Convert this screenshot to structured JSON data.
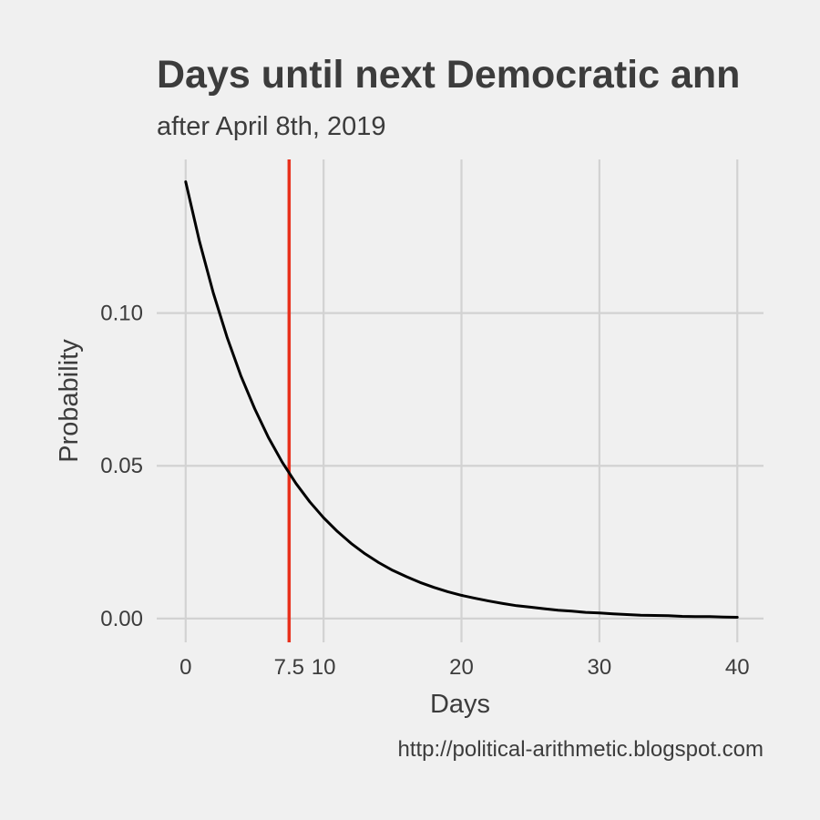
{
  "chart_data": {
    "type": "line",
    "title": "Days until next Democratic ann",
    "subtitle": "after April 8th, 2019",
    "xlabel": "Days",
    "ylabel": "Probability",
    "caption": "http://political-arithmetic.blogspot.com",
    "xlim": [
      -2.1,
      41.9
    ],
    "ylim": [
      -0.0078,
      0.1503
    ],
    "x_ticks": [
      0,
      7.5,
      10,
      20,
      30,
      40
    ],
    "x_tick_labels": [
      "0",
      "7.5",
      "10",
      "20",
      "30",
      "40"
    ],
    "y_ticks": [
      0,
      0.05,
      0.1
    ],
    "y_tick_labels": [
      "0.00",
      "0.05",
      "0.10"
    ],
    "grid": true,
    "series": [
      {
        "color": "#000000",
        "x": [
          0,
          1,
          2,
          3,
          4,
          5,
          6,
          7,
          8,
          9,
          10,
          11,
          12,
          13,
          14,
          15,
          16,
          17,
          18,
          19,
          20,
          21,
          22,
          23,
          24,
          25,
          26,
          27,
          28,
          29,
          30,
          31,
          32,
          33,
          34,
          35,
          36,
          37,
          38,
          39,
          40
        ],
        "values": [
          0.143,
          0.1235,
          0.1066,
          0.0921,
          0.0795,
          0.0687,
          0.0593,
          0.0512,
          0.0442,
          0.0382,
          0.033,
          0.0285,
          0.0246,
          0.0212,
          0.0183,
          0.0158,
          0.0137,
          0.0118,
          0.0102,
          0.0088,
          0.0076,
          0.0066,
          0.0057,
          0.0049,
          0.0042,
          0.0037,
          0.0032,
          0.0027,
          0.0024,
          0.002,
          0.0018,
          0.0015,
          0.0013,
          0.0011,
          0.001,
          0.0009,
          0.0007,
          0.0006,
          0.0006,
          0.0005,
          0.0004
        ]
      }
    ],
    "reference_line": {
      "x": 7.5,
      "color": "#e8301c"
    }
  }
}
